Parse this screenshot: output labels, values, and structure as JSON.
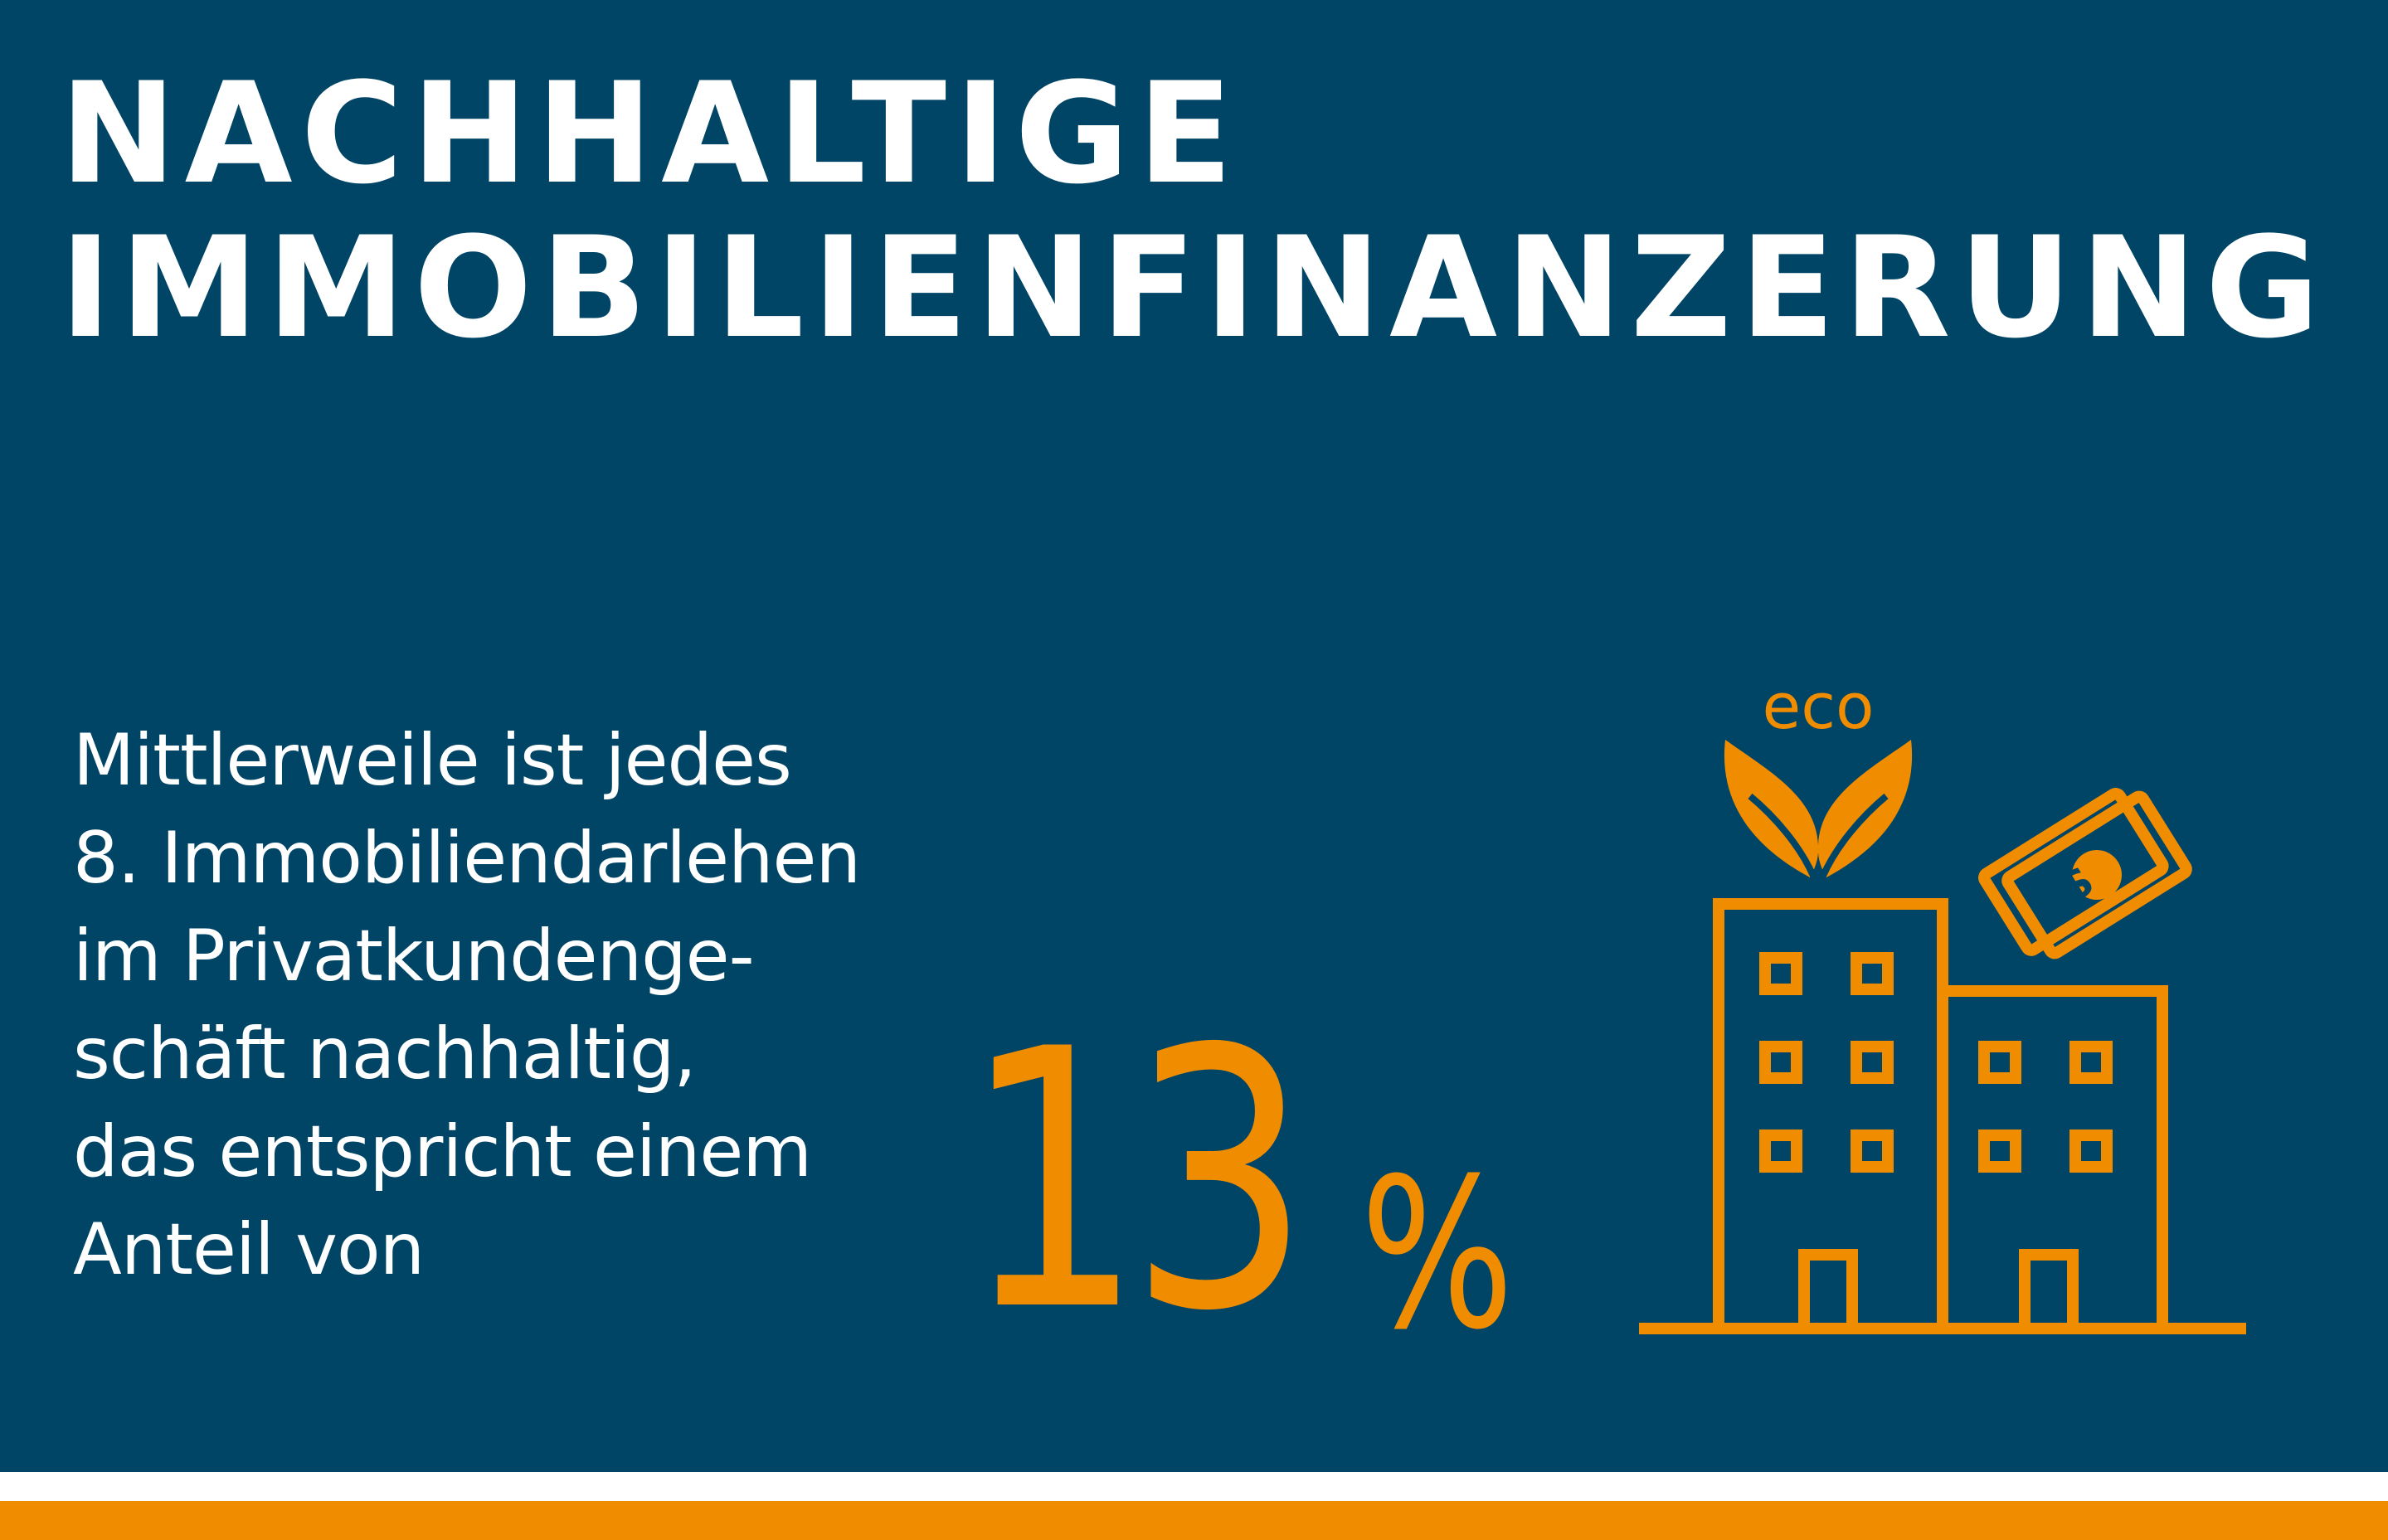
{
  "title_lines": [
    "NACHHALTIGE",
    "IMMOBILIENFINANZERUNG"
  ],
  "body_lines": [
    "Mittlerweile ist jedes",
    "8. Immobiliendarlehen",
    "im Privatkundenge-",
    "schäft nachhaltig,",
    "das entspricht einem",
    "Anteil von"
  ],
  "stat": {
    "value": "13",
    "unit": "%"
  },
  "eco_label": "eco",
  "icons": [
    "eco-leaves-icon",
    "money-bill-icon",
    "buildings-icon"
  ],
  "colors": {
    "background": "#004466",
    "accent": "#f08c00",
    "text": "#ffffff"
  }
}
